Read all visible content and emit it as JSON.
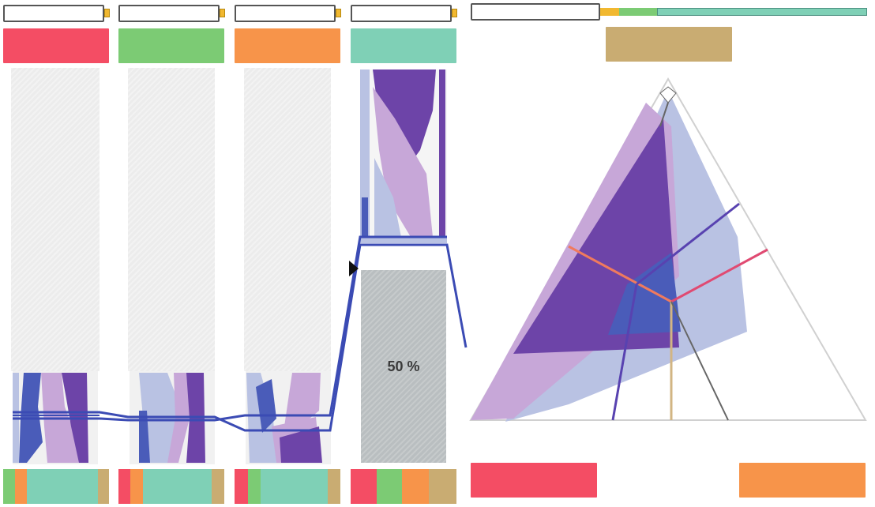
{
  "colors": {
    "red": "#f44d64",
    "green": "#7ccb74",
    "orange": "#f7944a",
    "teal": "#7fd0b6",
    "tan": "#c9ac72",
    "deep_purple": "#6d44a8",
    "blue": "#4a5cb9",
    "light_purple": "#c7a7d8",
    "pale_blue": "#b9c2e3",
    "line_blue": "#3b4bb4"
  },
  "panels": [
    {
      "id": "panel-1",
      "color_key": "red",
      "fill_level": 0.02,
      "mix": [
        0.11,
        0.11,
        0.0,
        0.68,
        0.1
      ]
    },
    {
      "id": "panel-2",
      "color_key": "green",
      "fill_level": 0.0,
      "mix": [
        0.11,
        0.11,
        0.0,
        0.68,
        0.1
      ]
    },
    {
      "id": "panel-3",
      "color_key": "orange",
      "fill_level": 0.0,
      "mix": [
        0.13,
        0.14,
        0.0,
        0.63,
        0.1
      ]
    },
    {
      "id": "panel-4",
      "color_key": "teal",
      "fill_level": 0.95,
      "mix": [
        0.24,
        0.23,
        0.24,
        0.0,
        0.29
      ]
    }
  ],
  "percent_label": "50 %",
  "ternary": {
    "header_color_key": "tan",
    "left_label_color_key": "red",
    "right_label_color_key": "orange"
  },
  "chart_data": {
    "type": "area",
    "title": "",
    "percent_label": "50 %",
    "series": []
  }
}
